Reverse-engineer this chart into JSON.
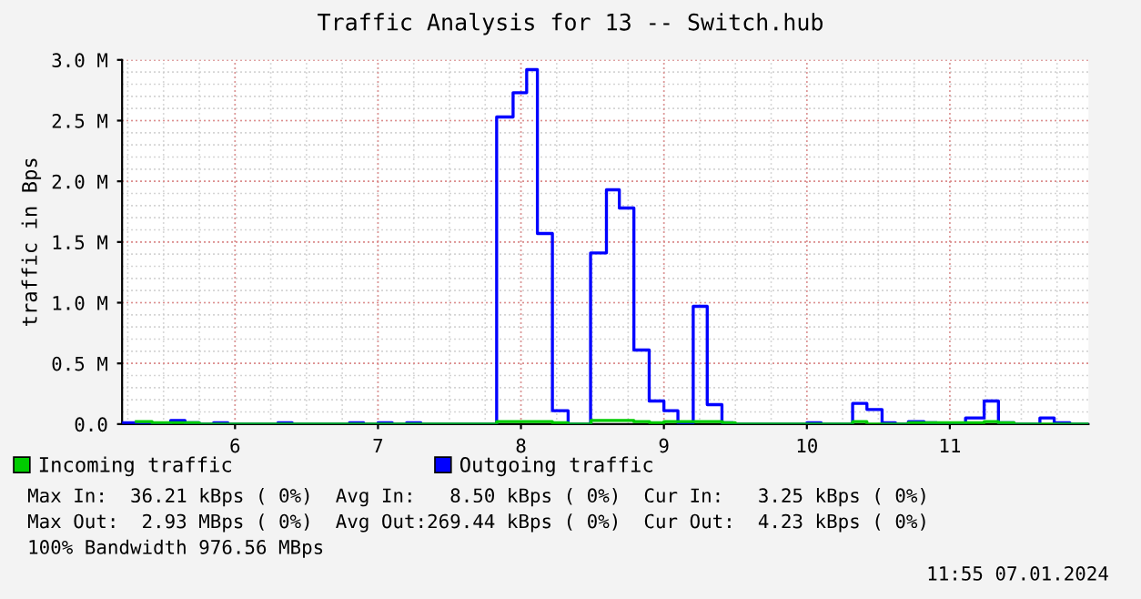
{
  "chart_data": {
    "type": "step",
    "title": "Traffic Analysis for 13 -- Switch.hub",
    "ylabel": "traffic in Bps",
    "series": [
      {
        "name": "Incoming traffic",
        "color": "#00cc00",
        "x": [
          5.31,
          5.42,
          5.55,
          5.65,
          5.75,
          7.83,
          8.22,
          8.33,
          8.49,
          8.79,
          8.9,
          9.0,
          9.2,
          9.41,
          9.5,
          10.32,
          10.42,
          10.71,
          10.82,
          11.24,
          11.34,
          11.45,
          11.97
        ],
        "values": [
          20000,
          10000,
          10000,
          10000,
          0,
          20000,
          10000,
          0,
          30000,
          20000,
          10000,
          20000,
          20000,
          10000,
          0,
          20000,
          0,
          10000,
          10000,
          20000,
          10000,
          0,
          0
        ]
      },
      {
        "name": "Outgoing traffic",
        "color": "#0000ff",
        "x": [
          5.21,
          5.31,
          5.42,
          5.55,
          5.65,
          5.75,
          5.85,
          5.95,
          6.3,
          6.4,
          6.8,
          6.9,
          7.0,
          7.1,
          7.2,
          7.3,
          7.83,
          7.945,
          8.04,
          8.115,
          8.22,
          8.33,
          8.487,
          8.598,
          8.688,
          8.79,
          8.897,
          9.0,
          9.098,
          9.205,
          9.303,
          9.406,
          9.483,
          10.0,
          10.1,
          10.32,
          10.42,
          10.526,
          10.62,
          10.71,
          10.82,
          10.91,
          11.11,
          11.24,
          11.34,
          11.45,
          11.63,
          11.73,
          11.84,
          11.97
        ],
        "values": [
          10000,
          0,
          0,
          30000,
          10000,
          0,
          10000,
          0,
          10000,
          0,
          10000,
          0,
          10000,
          0,
          10000,
          0,
          2530000,
          2730000,
          2920000,
          1570000,
          110000,
          0,
          1410000,
          1930000,
          1780000,
          610000,
          190000,
          110000,
          10000,
          970000,
          160000,
          10000,
          0,
          10000,
          0,
          170000,
          120000,
          10000,
          0,
          20000,
          10000,
          0,
          50000,
          190000,
          10000,
          0,
          50000,
          10000,
          0,
          0
        ]
      }
    ],
    "xlim": [
      5.21,
      11.97
    ],
    "xticks": [
      6,
      7,
      8,
      9,
      10,
      11
    ],
    "ylim": [
      0,
      3000000
    ],
    "yticks": [
      {
        "value": 0,
        "label": "0.0"
      },
      {
        "value": 500000,
        "label": "0.5 M"
      },
      {
        "value": 1000000,
        "label": "1.0 M"
      },
      {
        "value": 1500000,
        "label": "1.5 M"
      },
      {
        "value": 2000000,
        "label": "2.0 M"
      },
      {
        "value": 2500000,
        "label": "2.5 M"
      },
      {
        "value": 3000000,
        "label": "3.0 M"
      }
    ],
    "grid": true,
    "legend": "bottom",
    "annotations": [
      "Max In:  36.21 kBps ( 0%)  Avg In:   8.50 kBps ( 0%)  Cur In:   3.25 kBps ( 0%)",
      "Max Out:  2.93 MBps ( 0%)  Avg Out:269.44 kBps ( 0%)  Cur Out:  4.23 kBps ( 0%)",
      "100% Bandwidth 976.56 MBps",
      "11:55 07.01.2024"
    ]
  }
}
